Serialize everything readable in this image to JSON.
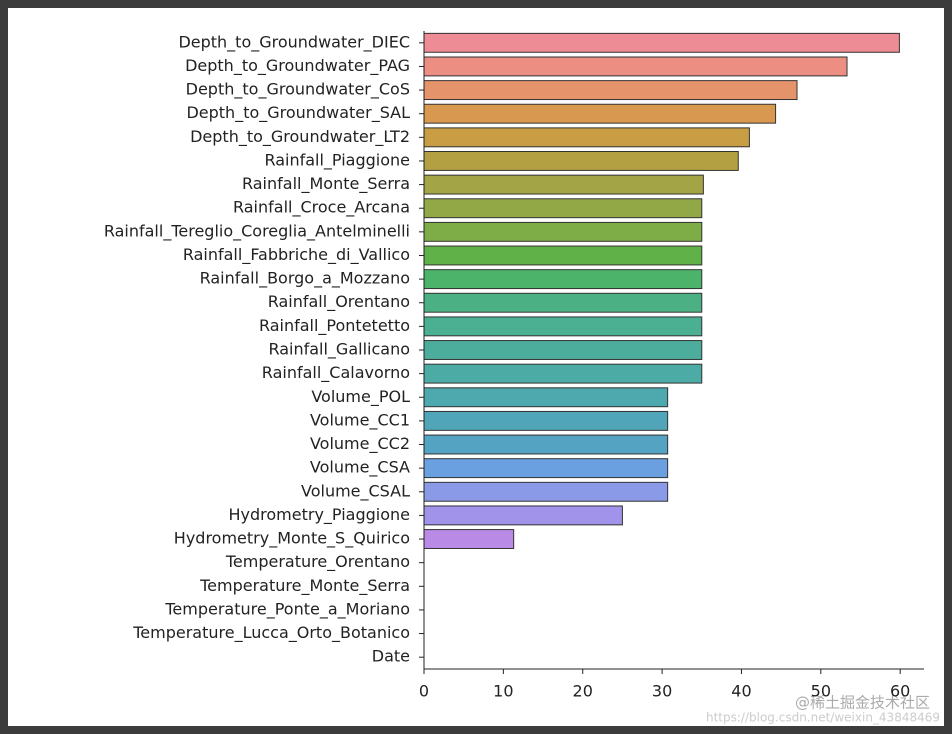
{
  "chart_data": {
    "type": "barh",
    "categories": [
      "Depth_to_Groundwater_DIEC",
      "Depth_to_Groundwater_PAG",
      "Depth_to_Groundwater_CoS",
      "Depth_to_Groundwater_SAL",
      "Depth_to_Groundwater_LT2",
      "Rainfall_Piaggione",
      "Rainfall_Monte_Serra",
      "Rainfall_Croce_Arcana",
      "Rainfall_Tereglio_Coreglia_Antelminelli",
      "Rainfall_Fabbriche_di_Vallico",
      "Rainfall_Borgo_a_Mozzano",
      "Rainfall_Orentano",
      "Rainfall_Pontetetto",
      "Rainfall_Gallicano",
      "Rainfall_Calavorno",
      "Volume_POL",
      "Volume_CC1",
      "Volume_CC2",
      "Volume_CSA",
      "Volume_CSAL",
      "Hydrometry_Piaggione",
      "Hydrometry_Monte_S_Quirico",
      "Temperature_Orentano",
      "Temperature_Monte_Serra",
      "Temperature_Ponte_a_Moriano",
      "Temperature_Lucca_Orto_Botanico",
      "Date"
    ],
    "values": [
      59.9,
      53.3,
      47.0,
      44.3,
      41.0,
      39.6,
      35.2,
      35.0,
      35.0,
      35.0,
      35.0,
      35.0,
      35.0,
      35.0,
      35.0,
      30.7,
      30.7,
      30.7,
      30.7,
      30.7,
      25.0,
      11.3,
      0,
      0,
      0,
      0,
      0
    ],
    "colors": [
      "#ee8c95",
      "#ec8e82",
      "#e5936a",
      "#d8984f",
      "#c99d44",
      "#b3a043",
      "#a3a446",
      "#92a847",
      "#7eac47",
      "#5fb148",
      "#4bb46a",
      "#4bb184",
      "#4baf92",
      "#4cad9c",
      "#4daba5",
      "#4ea9ae",
      "#50a6b8",
      "#54a3c3",
      "#6a9fe0",
      "#8a9ae6",
      "#a192ea",
      "#ba8ae7",
      "#d68ae0",
      "#e58bcf",
      "#ea8cbe",
      "#ee8db0",
      "#ee8da4"
    ],
    "xlim": [
      0,
      63
    ],
    "xticks": [
      0,
      10,
      20,
      30,
      40,
      50,
      60
    ]
  },
  "watermark": {
    "brand": "@稀土掘金技术社区",
    "url": "https://blog.csdn.net/weixin_43848469"
  }
}
